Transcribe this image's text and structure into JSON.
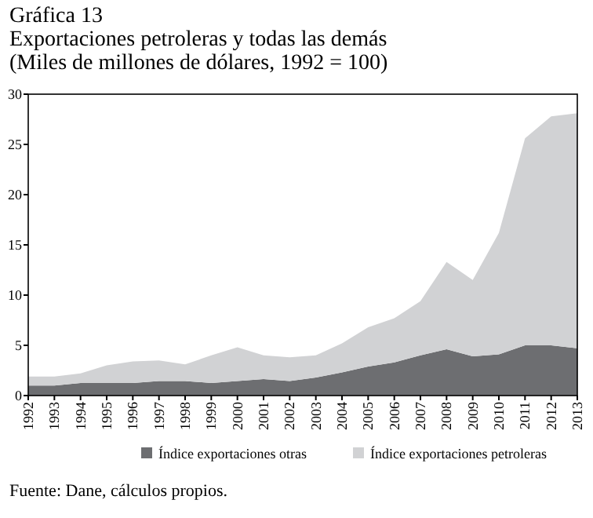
{
  "chart_data": {
    "type": "area",
    "title": "Gráfica 13",
    "subtitle": "Exportaciones petroleras y todas las demás\n(Miles de millones de dólares, 1992 = 100)",
    "categories": [
      "1992",
      "1993",
      "1994",
      "1995",
      "1996",
      "1997",
      "1998",
      "1999",
      "2000",
      "2001",
      "2002",
      "2003",
      "2004",
      "2005",
      "2006",
      "2007",
      "2008",
      "2009",
      "2010",
      "2011",
      "2012",
      "2013"
    ],
    "stacked": true,
    "series": [
      {
        "name": "Índice exportaciones otras",
        "color": "#6d6e71",
        "values": [
          1.0,
          1.0,
          1.25,
          1.25,
          1.25,
          1.45,
          1.45,
          1.25,
          1.45,
          1.65,
          1.45,
          1.8,
          2.3,
          2.9,
          3.3,
          4.0,
          4.6,
          3.9,
          4.1,
          5.0,
          5.0,
          4.7
        ]
      },
      {
        "name": "Índice exportaciones petroleras",
        "color": "#d1d2d4",
        "values": [
          0.9,
          0.9,
          0.95,
          1.75,
          2.15,
          2.05,
          1.65,
          2.75,
          3.35,
          2.35,
          2.35,
          2.2,
          2.9,
          3.9,
          4.4,
          5.4,
          8.7,
          7.6,
          12.1,
          20.6,
          22.8,
          23.4
        ]
      }
    ],
    "ylim": [
      0,
      30
    ],
    "yticks": [
      0,
      5,
      10,
      15,
      20,
      25,
      30
    ],
    "grid": false,
    "legend": "bottom",
    "annotations": [
      "Fuente: Dane, cálculos propios."
    ]
  }
}
